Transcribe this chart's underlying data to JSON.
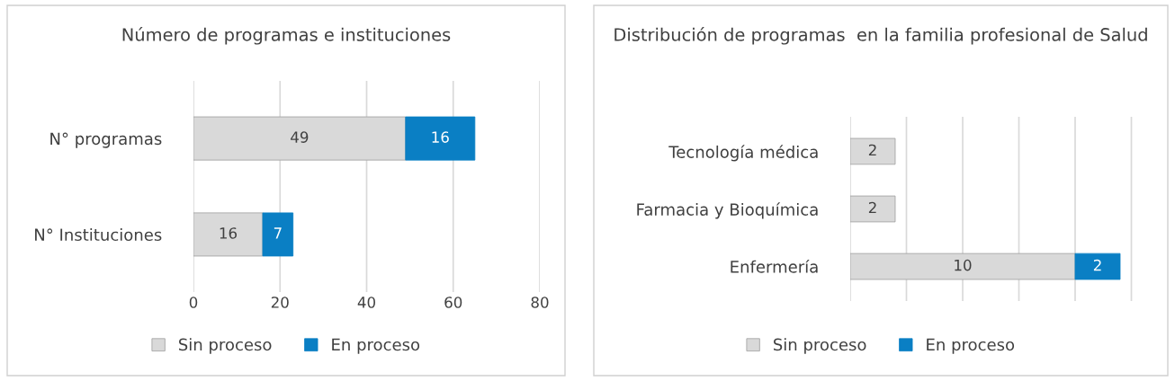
{
  "chart_data": [
    {
      "type": "bar",
      "title": "Número de programas e instituciones",
      "orientation": "horizontal",
      "stacked": true,
      "categories": [
        "N° programas",
        "N° Instituciones"
      ],
      "series": [
        {
          "name": "Sin proceso",
          "color": "#d9d9d9",
          "values": [
            49,
            16
          ]
        },
        {
          "name": "En proceso",
          "color": "#0a7fc4",
          "values": [
            16,
            7
          ]
        }
      ],
      "xlim": [
        0,
        80
      ],
      "xticks": [
        0,
        20,
        40,
        60,
        80
      ],
      "grid": "x",
      "legend": "bottom",
      "data_labels": true
    },
    {
      "type": "bar",
      "title": "Distribución de programas  en la familia profesional de Salud",
      "orientation": "horizontal",
      "stacked": true,
      "categories": [
        "Tecnología médica",
        "Farmacia y Bioquímica",
        "Enfermería"
      ],
      "series": [
        {
          "name": "Sin proceso",
          "color": "#d9d9d9",
          "values": [
            2,
            2,
            10
          ]
        },
        {
          "name": "En proceso",
          "color": "#0a7fc4",
          "values": [
            null,
            null,
            2
          ]
        }
      ],
      "tick_labels": "y",
      "grid": "x",
      "legend": "bottom",
      "data_labels": true
    }
  ]
}
